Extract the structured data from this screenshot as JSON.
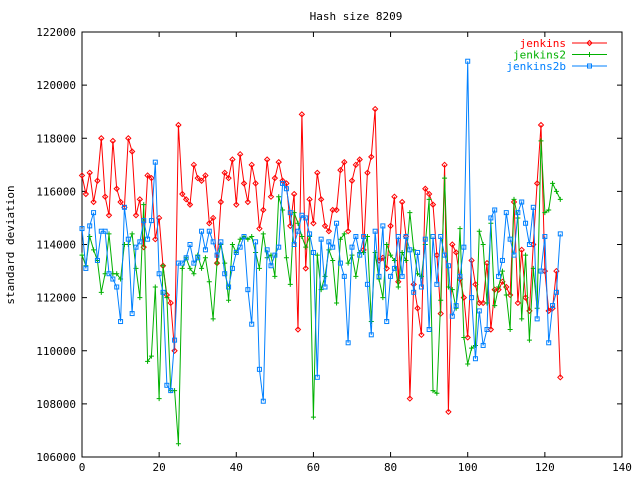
{
  "chart_data": {
    "type": "line",
    "title": "Hash size 8209",
    "xlabel": "",
    "ylabel": "standard deviation",
    "xlim": [
      0,
      140
    ],
    "ylim": [
      106000,
      122000
    ],
    "x_ticks": [
      0,
      20,
      40,
      60,
      80,
      100,
      120,
      140
    ],
    "y_ticks": [
      106000,
      108000,
      110000,
      112000,
      114000,
      116000,
      118000,
      120000,
      122000
    ],
    "x_tick_labels": [
      "0",
      "20",
      "40",
      "60",
      "80",
      "100",
      "120",
      "140"
    ],
    "y_tick_labels": [
      "106000",
      "108000",
      "110000",
      "112000",
      "114000",
      "116000",
      "118000",
      "120000",
      "122000"
    ],
    "grid": false,
    "legend_position": "top-right",
    "series": [
      {
        "name": "jenkins",
        "color": "#ff0000",
        "marker": "diamond",
        "values": [
          116600,
          115900,
          116700,
          115600,
          116400,
          118000,
          115800,
          115100,
          117900,
          116100,
          115600,
          115400,
          118000,
          117500,
          115100,
          115700,
          113900,
          116600,
          116500,
          114200,
          115000,
          113200,
          112100,
          111800,
          110000,
          118500,
          115900,
          115700,
          115500,
          117000,
          116500,
          116400,
          116600,
          114800,
          115000,
          113300,
          115600,
          116700,
          116500,
          117200,
          115500,
          117400,
          116300,
          115600,
          117000,
          116300,
          114600,
          115300,
          117200,
          115800,
          116500,
          117100,
          116400,
          116300,
          114700,
          115900,
          110800,
          118900,
          113100,
          115700,
          114800,
          116700,
          115700,
          114700,
          114500,
          115300,
          115300,
          116800,
          117100,
          114500,
          116400,
          117000,
          117200,
          113800,
          116700,
          117300,
          119100,
          113400,
          113500,
          113100,
          114700,
          115800,
          112600,
          115600,
          114300,
          108200,
          112500,
          111600,
          110600,
          116100,
          115900,
          115500,
          113600,
          111400,
          117000,
          107700,
          114000,
          113700,
          112700,
          112000,
          110500,
          113400,
          112500,
          111800,
          111800,
          113300,
          110800,
          112300,
          112300,
          112600,
          112400,
          112100,
          115600,
          111800,
          113800,
          112000,
          111500,
          114000,
          116300,
          118500,
          113000,
          111500,
          111600,
          113000,
          109000
        ],
        "x": [
          0,
          1,
          2,
          3,
          4,
          5,
          6,
          7,
          8,
          9,
          10,
          11,
          12,
          13,
          14,
          15,
          16,
          17,
          18,
          19,
          20,
          21,
          22,
          23,
          24,
          25,
          26,
          27,
          28,
          29,
          30,
          31,
          32,
          33,
          34,
          35,
          36,
          37,
          38,
          39,
          40,
          41,
          42,
          43,
          44,
          45,
          46,
          47,
          48,
          49,
          50,
          51,
          52,
          53,
          54,
          55,
          56,
          57,
          58,
          59,
          60,
          61,
          62,
          63,
          64,
          65,
          66,
          67,
          68,
          69,
          70,
          71,
          72,
          73,
          74,
          75,
          76,
          77,
          78,
          79,
          80,
          81,
          82,
          83,
          84,
          85,
          86,
          87,
          88,
          89,
          90,
          91,
          92,
          93,
          94,
          95,
          96,
          97,
          98,
          99,
          100,
          101,
          102,
          103,
          104,
          105,
          106,
          107,
          108,
          109,
          110,
          111,
          112,
          113,
          114,
          115,
          116,
          117,
          118,
          119,
          120,
          121,
          122,
          123,
          124
        ]
      },
      {
        "name": "jenkins2",
        "color": "#00b000",
        "marker": "plus",
        "values": [
          113600,
          113200,
          114300,
          113800,
          113400,
          112200,
          112900,
          114400,
          112900,
          112900,
          112700,
          114000,
          114000,
          114400,
          113100,
          112000,
          115500,
          109600,
          109800,
          112400,
          108200,
          113200,
          112000,
          108500,
          108500,
          106500,
          113100,
          113500,
          113100,
          112900,
          113600,
          113100,
          113500,
          112600,
          111200,
          113300,
          114000,
          113300,
          111900,
          114000,
          113700,
          114200,
          114300,
          114200,
          114300,
          113700,
          113100,
          114400,
          113500,
          113600,
          112800,
          115800,
          115300,
          113500,
          112500,
          115200,
          114800,
          114300,
          113900,
          114300,
          107500,
          113600,
          112300,
          112800,
          113800,
          113400,
          111800,
          114200,
          114400,
          113300,
          113600,
          112800,
          113700,
          113700,
          114300,
          111100,
          113700,
          112700,
          112000,
          114000,
          113600,
          113400,
          112400,
          113700,
          113400,
          115200,
          113800,
          112900,
          112800,
          114000,
          115700,
          108500,
          108400,
          111900,
          116500,
          112400,
          112300,
          111600,
          114600,
          110500,
          109500,
          110100,
          110200,
          114500,
          114000,
          111800,
          114800,
          111700,
          112400,
          113000,
          112100,
          110800,
          115700,
          115000,
          111200,
          113600,
          110400,
          113100,
          111600,
          117900,
          115200,
          115300,
          116300,
          116000,
          115700
        ],
        "x": [
          0,
          1,
          2,
          3,
          4,
          5,
          6,
          7,
          8,
          9,
          10,
          11,
          12,
          13,
          14,
          15,
          16,
          17,
          18,
          19,
          20,
          21,
          22,
          23,
          24,
          25,
          26,
          27,
          28,
          29,
          30,
          31,
          32,
          33,
          34,
          35,
          36,
          37,
          38,
          39,
          40,
          41,
          42,
          43,
          44,
          45,
          46,
          47,
          48,
          49,
          50,
          51,
          52,
          53,
          54,
          55,
          56,
          57,
          58,
          59,
          60,
          61,
          62,
          63,
          64,
          65,
          66,
          67,
          68,
          69,
          70,
          71,
          72,
          73,
          74,
          75,
          76,
          77,
          78,
          79,
          80,
          81,
          82,
          83,
          84,
          85,
          86,
          87,
          88,
          89,
          90,
          91,
          92,
          93,
          94,
          95,
          96,
          97,
          98,
          99,
          100,
          101,
          102,
          103,
          104,
          105,
          106,
          107,
          108,
          109,
          110,
          111,
          112,
          113,
          114,
          115,
          116,
          117,
          118,
          119,
          120,
          121,
          122,
          123,
          124
        ]
      },
      {
        "name": "jenkins2b",
        "color": "#0080ff",
        "marker": "square",
        "values": [
          114600,
          113100,
          114700,
          115200,
          113400,
          114500,
          114500,
          112900,
          112700,
          112400,
          111100,
          115400,
          114200,
          111400,
          113900,
          114100,
          114900,
          114200,
          114900,
          117100,
          112900,
          112200,
          108700,
          108500,
          110400,
          113300,
          113300,
          113500,
          114000,
          113300,
          113500,
          114500,
          113800,
          114500,
          114100,
          113600,
          114100,
          112900,
          112400,
          113100,
          113700,
          113900,
          114300,
          112300,
          111000,
          114100,
          109300,
          108100,
          113800,
          113200,
          113600,
          113900,
          116300,
          116100,
          115200,
          114000,
          114500,
          115100,
          115000,
          114400,
          113700,
          109000,
          114200,
          112400,
          114100,
          113900,
          114800,
          113300,
          112800,
          110300,
          113900,
          114300,
          113600,
          114300,
          112500,
          110600,
          114500,
          112800,
          114700,
          111100,
          112800,
          113100,
          114300,
          112800,
          114300,
          113800,
          112200,
          113700,
          112400,
          114200,
          110800,
          114300,
          112500,
          114300,
          113600,
          113200,
          111300,
          111700,
          112800,
          113900,
          120900,
          112000,
          109700,
          111500,
          110200,
          110800,
          115000,
          115300,
          112800,
          113400,
          115200,
          114200,
          113600,
          115200,
          115600,
          114800,
          114000,
          115400,
          111200,
          113000,
          114300,
          110300,
          111700,
          112200,
          114400
        ],
        "x": [
          0,
          1,
          2,
          3,
          4,
          5,
          6,
          7,
          8,
          9,
          10,
          11,
          12,
          13,
          14,
          15,
          16,
          17,
          18,
          19,
          20,
          21,
          22,
          23,
          24,
          25,
          26,
          27,
          28,
          29,
          30,
          31,
          32,
          33,
          34,
          35,
          36,
          37,
          38,
          39,
          40,
          41,
          42,
          43,
          44,
          45,
          46,
          47,
          48,
          49,
          50,
          51,
          52,
          53,
          54,
          55,
          56,
          57,
          58,
          59,
          60,
          61,
          62,
          63,
          64,
          65,
          66,
          67,
          68,
          69,
          70,
          71,
          72,
          73,
          74,
          75,
          76,
          77,
          78,
          79,
          80,
          81,
          82,
          83,
          84,
          85,
          86,
          87,
          88,
          89,
          90,
          91,
          92,
          93,
          94,
          95,
          96,
          97,
          98,
          99,
          100,
          101,
          102,
          103,
          104,
          105,
          106,
          107,
          108,
          109,
          110,
          111,
          112,
          113,
          114,
          115,
          116,
          117,
          118,
          119,
          120,
          121,
          122,
          123,
          124
        ]
      }
    ]
  }
}
